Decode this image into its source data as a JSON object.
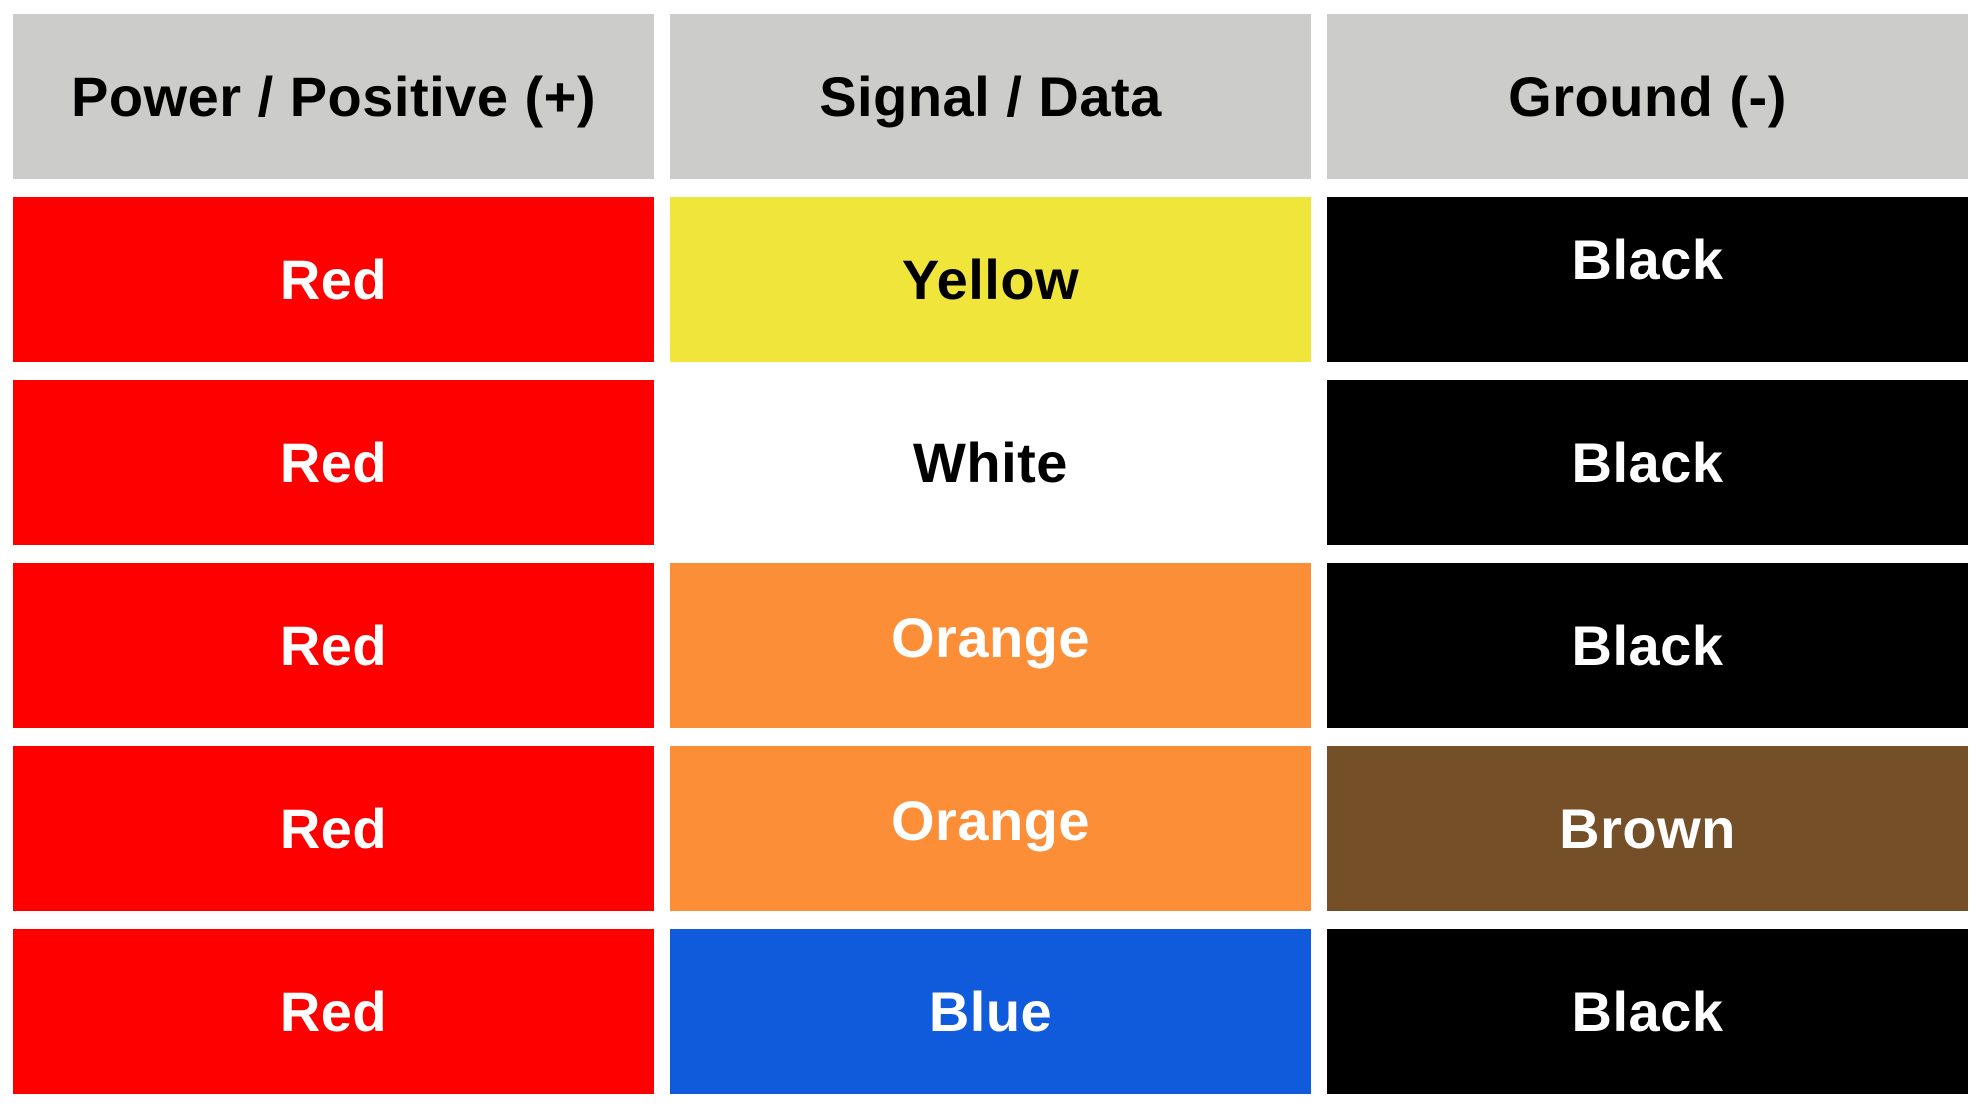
{
  "headers": [
    "Power / Positive (+)",
    "Signal / Data",
    "Ground (-)"
  ],
  "rows": [
    [
      {
        "label": "Red",
        "color": "#ff0000",
        "text_color": "#ffffff"
      },
      {
        "label": "Yellow",
        "color": "#f0e53a",
        "text_color": "#000000"
      },
      {
        "label": "Black",
        "color": "#000000",
        "text_color": "#ffffff"
      }
    ],
    [
      {
        "label": "Red",
        "color": "#ff0000",
        "text_color": "#ffffff"
      },
      {
        "label": "White",
        "color": "#ffffff",
        "text_color": "#000000"
      },
      {
        "label": "Black",
        "color": "#000000",
        "text_color": "#ffffff"
      }
    ],
    [
      {
        "label": "Red",
        "color": "#ff0000",
        "text_color": "#ffffff"
      },
      {
        "label": "Orange",
        "color": "#fc8e37",
        "text_color": "#ffffff"
      },
      {
        "label": "Black",
        "color": "#000000",
        "text_color": "#ffffff"
      }
    ],
    [
      {
        "label": "Red",
        "color": "#ff0000",
        "text_color": "#ffffff"
      },
      {
        "label": "Orange",
        "color": "#fc8e37",
        "text_color": "#ffffff"
      },
      {
        "label": "Brown",
        "color": "#754f27",
        "text_color": "#ffffff"
      }
    ],
    [
      {
        "label": "Red",
        "color": "#ff0000",
        "text_color": "#ffffff"
      },
      {
        "label": "Blue",
        "color": "#105adc",
        "text_color": "#ffffff"
      },
      {
        "label": "Black",
        "color": "#000000",
        "text_color": "#ffffff"
      }
    ]
  ],
  "header_color": "#cccccb"
}
